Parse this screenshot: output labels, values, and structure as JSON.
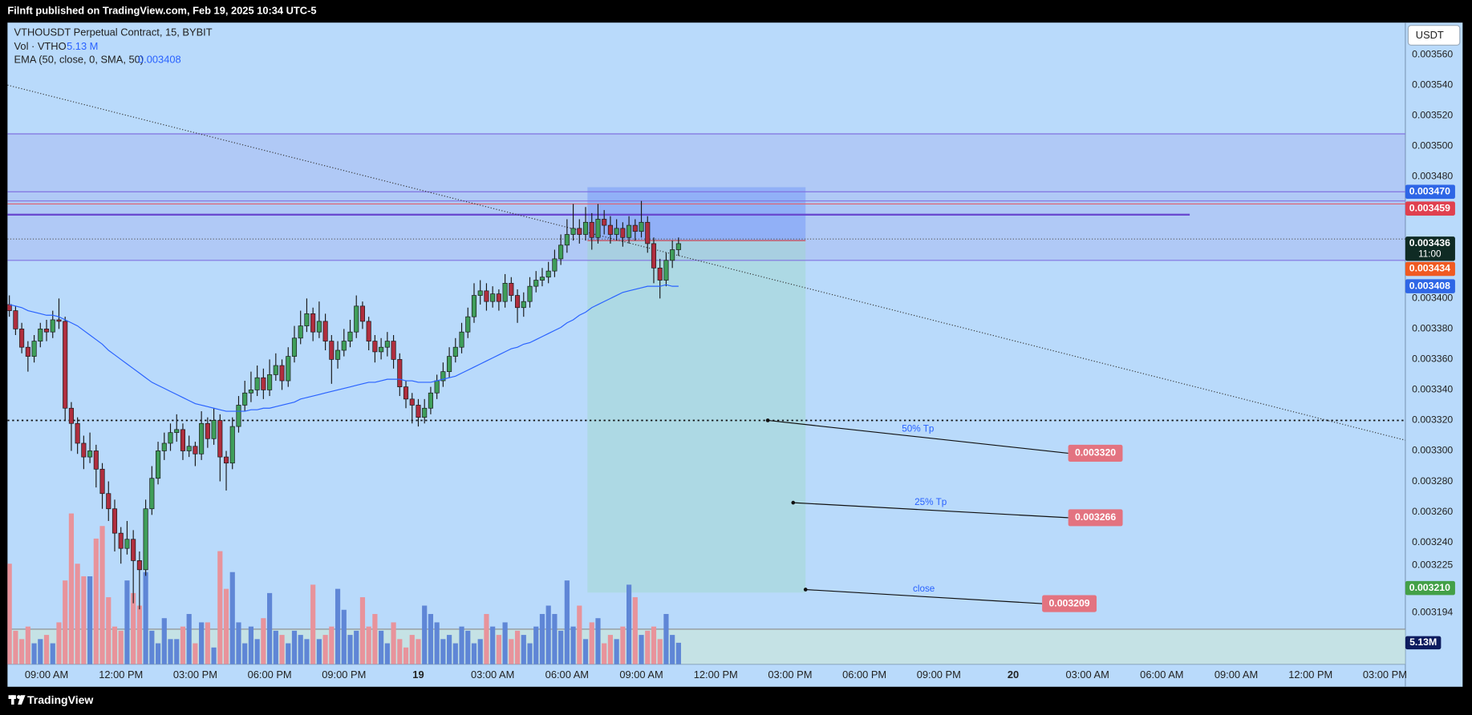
{
  "header": "Filnft published on TradingView.com, Feb 19, 2025 10:34 UTC-5",
  "footer_brand": "TradingView",
  "chart_data": {
    "type": "candlestick",
    "title": "VTHOUSDT Perpetual Contract, 15, BYBIT",
    "currency": "USDT",
    "volume_legend": {
      "name": "Vol · VTHO",
      "value_label": "5.13 M"
    },
    "up_color": "#3f9e5a",
    "down_color": "#b02e3e",
    "volume_up_color": "#5f86d6",
    "volume_down_color": "#e8939b",
    "xlim": [
      -0.3,
      225.3
    ],
    "ylim": [
      0.00316,
      0.003581
    ],
    "xticks": [
      {
        "value": 6,
        "label": "09:00 AM"
      },
      {
        "value": 18,
        "label": "12:00 PM"
      },
      {
        "value": 30,
        "label": "03:00 PM"
      },
      {
        "value": 42,
        "label": "06:00 PM"
      },
      {
        "value": 54,
        "label": "09:00 PM"
      },
      {
        "value": 66,
        "label": "19"
      },
      {
        "value": 78,
        "label": "03:00 AM"
      },
      {
        "value": 90,
        "label": "06:00 AM"
      },
      {
        "value": 102,
        "label": "09:00 AM"
      },
      {
        "value": 114,
        "label": "12:00 PM"
      },
      {
        "value": 126,
        "label": "03:00 PM"
      },
      {
        "value": 138,
        "label": "06:00 PM"
      },
      {
        "value": 150,
        "label": "09:00 PM"
      },
      {
        "value": 162,
        "label": "20"
      },
      {
        "value": 174,
        "label": "03:00 AM"
      },
      {
        "value": 186,
        "label": "06:00 AM"
      },
      {
        "value": 198,
        "label": "09:00 AM"
      },
      {
        "value": 210,
        "label": "12:00 PM"
      },
      {
        "value": 222,
        "label": "03:00 PM"
      }
    ],
    "yticks": [
      {
        "value": 0.00356,
        "label": "0.003560"
      },
      {
        "value": 0.00354,
        "label": "0.003540"
      },
      {
        "value": 0.00352,
        "label": "0.003520"
      },
      {
        "value": 0.0035,
        "label": "0.003500"
      },
      {
        "value": 0.00348,
        "label": "0.003480"
      },
      {
        "value": 0.0034,
        "label": "0.003400"
      },
      {
        "value": 0.00338,
        "label": "0.003380"
      },
      {
        "value": 0.00336,
        "label": "0.003360"
      },
      {
        "value": 0.00334,
        "label": "0.003340"
      },
      {
        "value": 0.00332,
        "label": "0.003320"
      },
      {
        "value": 0.0033,
        "label": "0.003300"
      },
      {
        "value": 0.00328,
        "label": "0.003280"
      },
      {
        "value": 0.00326,
        "label": "0.003260"
      },
      {
        "value": 0.00324,
        "label": "0.003240"
      },
      {
        "value": 0.003225,
        "label": "0.003225"
      },
      {
        "value": 0.003194,
        "label": "0.003194"
      }
    ],
    "ohlc": [
      [
        0.003396,
        0.003402,
        0.003388,
        0.003392
      ],
      [
        0.003392,
        0.003395,
        0.003376,
        0.00338
      ],
      [
        0.00338,
        0.003384,
        0.003364,
        0.003368
      ],
      [
        0.003368,
        0.003372,
        0.003352,
        0.003362
      ],
      [
        0.003362,
        0.003376,
        0.003358,
        0.003372
      ],
      [
        0.003372,
        0.003384,
        0.003368,
        0.00338
      ],
      [
        0.00338,
        0.003386,
        0.003372,
        0.003378
      ],
      [
        0.003378,
        0.003392,
        0.003374,
        0.003386
      ],
      [
        0.003386,
        0.0034,
        0.00338,
        0.003385
      ],
      [
        0.003385,
        0.003388,
        0.00332,
        0.003328
      ],
      [
        0.003328,
        0.003332,
        0.0033,
        0.003318
      ],
      [
        0.003318,
        0.003322,
        0.003298,
        0.003305
      ],
      [
        0.003305,
        0.00331,
        0.003288,
        0.003296
      ],
      [
        0.003296,
        0.003312,
        0.003292,
        0.0033
      ],
      [
        0.0033,
        0.003304,
        0.003276,
        0.003288
      ],
      [
        0.003288,
        0.003292,
        0.003262,
        0.003272
      ],
      [
        0.003272,
        0.00328,
        0.003254,
        0.003262
      ],
      [
        0.003262,
        0.003268,
        0.003234,
        0.003246
      ],
      [
        0.003246,
        0.00325,
        0.003226,
        0.003236
      ],
      [
        0.003236,
        0.003254,
        0.003232,
        0.003242
      ],
      [
        0.003242,
        0.003248,
        0.0032,
        0.003228
      ],
      [
        0.003228,
        0.003234,
        0.003196,
        0.003222
      ],
      [
        0.003222,
        0.003268,
        0.003218,
        0.003262
      ],
      [
        0.003262,
        0.00329,
        0.003258,
        0.003282
      ],
      [
        0.003282,
        0.003306,
        0.003278,
        0.0033
      ],
      [
        0.0033,
        0.003312,
        0.003294,
        0.003305
      ],
      [
        0.003305,
        0.003318,
        0.0033,
        0.003312
      ],
      [
        0.003312,
        0.003324,
        0.003306,
        0.003314
      ],
      [
        0.003314,
        0.003318,
        0.003294,
        0.0033
      ],
      [
        0.0033,
        0.00331,
        0.003296,
        0.003303
      ],
      [
        0.003303,
        0.003306,
        0.00329,
        0.003298
      ],
      [
        0.003298,
        0.003326,
        0.003294,
        0.003318
      ],
      [
        0.003318,
        0.003322,
        0.003302,
        0.003308
      ],
      [
        0.003308,
        0.003328,
        0.003304,
        0.00332
      ],
      [
        0.00332,
        0.003324,
        0.00328,
        0.003296
      ],
      [
        0.003296,
        0.0033,
        0.003274,
        0.003292
      ],
      [
        0.003292,
        0.003322,
        0.003288,
        0.003316
      ],
      [
        0.003316,
        0.003336,
        0.003312,
        0.00333
      ],
      [
        0.00333,
        0.003346,
        0.003326,
        0.003338
      ],
      [
        0.003338,
        0.003352,
        0.003332,
        0.00334
      ],
      [
        0.00334,
        0.003356,
        0.003336,
        0.003348
      ],
      [
        0.003348,
        0.003354,
        0.003334,
        0.00334
      ],
      [
        0.00334,
        0.00336,
        0.003336,
        0.00335
      ],
      [
        0.00335,
        0.003364,
        0.003346,
        0.003356
      ],
      [
        0.003356,
        0.00336,
        0.00334,
        0.003346
      ],
      [
        0.003346,
        0.003368,
        0.003342,
        0.003362
      ],
      [
        0.003362,
        0.003382,
        0.003358,
        0.003374
      ],
      [
        0.003374,
        0.003392,
        0.00337,
        0.003382
      ],
      [
        0.003382,
        0.0034,
        0.003378,
        0.00339
      ],
      [
        0.00339,
        0.003394,
        0.003372,
        0.003378
      ],
      [
        0.003378,
        0.003398,
        0.003374,
        0.003385
      ],
      [
        0.003385,
        0.00339,
        0.003366,
        0.003372
      ],
      [
        0.003372,
        0.003376,
        0.003344,
        0.00336
      ],
      [
        0.00336,
        0.003372,
        0.003354,
        0.003366
      ],
      [
        0.003366,
        0.00338,
        0.003362,
        0.003372
      ],
      [
        0.003372,
        0.003386,
        0.003368,
        0.003378
      ],
      [
        0.003378,
        0.003402,
        0.003374,
        0.003395
      ],
      [
        0.003395,
        0.003398,
        0.00338,
        0.003385
      ],
      [
        0.003385,
        0.003388,
        0.003366,
        0.003372
      ],
      [
        0.003372,
        0.003376,
        0.003358,
        0.003365
      ],
      [
        0.003365,
        0.003374,
        0.00336,
        0.003368
      ],
      [
        0.003368,
        0.003378,
        0.003362,
        0.003372
      ],
      [
        0.003372,
        0.003376,
        0.003354,
        0.00336
      ],
      [
        0.00336,
        0.003364,
        0.003336,
        0.003342
      ],
      [
        0.003342,
        0.003346,
        0.003328,
        0.003334
      ],
      [
        0.003334,
        0.003338,
        0.003318,
        0.00333
      ],
      [
        0.00333,
        0.003334,
        0.003316,
        0.003322
      ],
      [
        0.003322,
        0.003334,
        0.003318,
        0.003328
      ],
      [
        0.003328,
        0.003342,
        0.003324,
        0.003338
      ],
      [
        0.003338,
        0.00335,
        0.003334,
        0.003346
      ],
      [
        0.003346,
        0.003358,
        0.003342,
        0.003352
      ],
      [
        0.003352,
        0.003368,
        0.003348,
        0.003362
      ],
      [
        0.003362,
        0.003374,
        0.003358,
        0.003368
      ],
      [
        0.003368,
        0.003384,
        0.003364,
        0.003378
      ],
      [
        0.003378,
        0.003394,
        0.003374,
        0.003388
      ],
      [
        0.003388,
        0.00341,
        0.003384,
        0.003402
      ],
      [
        0.003402,
        0.003412,
        0.003396,
        0.003405
      ],
      [
        0.003405,
        0.00341,
        0.003392,
        0.003398
      ],
      [
        0.003398,
        0.003408,
        0.003394,
        0.003403
      ],
      [
        0.003403,
        0.003406,
        0.003392,
        0.003398
      ],
      [
        0.003398,
        0.003416,
        0.003394,
        0.00341
      ],
      [
        0.00341,
        0.003414,
        0.003398,
        0.003402
      ],
      [
        0.003402,
        0.003406,
        0.003384,
        0.003394
      ],
      [
        0.003394,
        0.003404,
        0.003388,
        0.003398
      ],
      [
        0.003398,
        0.003414,
        0.003394,
        0.003408
      ],
      [
        0.003408,
        0.003418,
        0.003404,
        0.003412
      ],
      [
        0.003412,
        0.00342,
        0.003408,
        0.003414
      ],
      [
        0.003414,
        0.003424,
        0.00341,
        0.003418
      ],
      [
        0.003418,
        0.003432,
        0.003414,
        0.003426
      ],
      [
        0.003426,
        0.003442,
        0.003422,
        0.003435
      ],
      [
        0.003435,
        0.003452,
        0.00343,
        0.003442
      ],
      [
        0.003442,
        0.003462,
        0.003438,
        0.003446
      ],
      [
        0.003446,
        0.003452,
        0.003436,
        0.003442
      ],
      [
        0.003442,
        0.00346,
        0.003438,
        0.00345
      ],
      [
        0.00345,
        0.003456,
        0.003432,
        0.00344
      ],
      [
        0.00344,
        0.003462,
        0.003436,
        0.003452
      ],
      [
        0.003452,
        0.003458,
        0.003442,
        0.003448
      ],
      [
        0.003448,
        0.003454,
        0.003436,
        0.003442
      ],
      [
        0.003442,
        0.003452,
        0.003438,
        0.003446
      ],
      [
        0.003446,
        0.00345,
        0.003434,
        0.00344
      ],
      [
        0.00344,
        0.003454,
        0.003436,
        0.003448
      ],
      [
        0.003448,
        0.003452,
        0.003438,
        0.003444
      ],
      [
        0.003444,
        0.003464,
        0.00344,
        0.00345
      ],
      [
        0.00345,
        0.003454,
        0.00343,
        0.003436
      ],
      [
        0.003436,
        0.00344,
        0.00341,
        0.00342
      ],
      [
        0.00342,
        0.003426,
        0.0034,
        0.003412
      ],
      [
        0.003412,
        0.00343,
        0.003408,
        0.003425
      ],
      [
        0.003425,
        0.003438,
        0.00342,
        0.003432
      ],
      [
        0.003432,
        0.00344,
        0.003428,
        0.003436
      ]
    ],
    "volume": [
      24,
      8,
      6,
      9,
      5,
      6,
      7,
      5,
      10,
      20,
      36,
      24,
      21,
      21,
      30,
      33,
      16,
      9,
      8,
      20,
      17,
      14,
      22,
      8,
      5,
      11,
      6,
      6,
      9,
      12,
      5,
      10,
      10,
      4,
      27,
      18,
      22,
      10,
      5,
      9,
      6,
      11,
      17,
      8,
      7,
      5,
      8,
      7,
      6,
      19,
      6,
      7,
      9,
      18,
      13,
      7,
      8,
      16,
      9,
      12,
      8,
      5,
      10,
      6,
      4,
      7,
      6,
      14,
      12,
      10,
      6,
      7,
      5,
      9,
      8,
      5,
      6,
      12,
      9,
      7,
      10,
      6,
      8,
      7,
      5,
      9,
      12,
      14,
      12,
      8,
      20,
      9,
      14,
      6,
      10,
      11,
      5,
      7,
      6,
      9,
      19,
      16,
      7,
      8,
      9,
      6,
      12,
      7,
      5.13
    ],
    "ema": {
      "name": "EMA (50, close, 0, SMA, 50)",
      "value_label": "0.003408",
      "color": "#2962ff",
      "values": [
        0.003396,
        0.003395,
        0.003394,
        0.003392,
        0.003391,
        0.00339,
        0.003389,
        0.003389,
        0.003388,
        0.003386,
        0.003384,
        0.003382,
        0.003379,
        0.003376,
        0.003373,
        0.00337,
        0.003366,
        0.003363,
        0.00336,
        0.003357,
        0.003354,
        0.003351,
        0.003348,
        0.003345,
        0.003343,
        0.003341,
        0.003339,
        0.003337,
        0.003335,
        0.003333,
        0.003331,
        0.00333,
        0.003329,
        0.003328,
        0.003327,
        0.003326,
        0.003326,
        0.003326,
        0.003326,
        0.003327,
        0.003327,
        0.003328,
        0.003328,
        0.003329,
        0.00333,
        0.003331,
        0.003332,
        0.003334,
        0.003335,
        0.003336,
        0.003337,
        0.003338,
        0.003339,
        0.00334,
        0.003341,
        0.003342,
        0.003343,
        0.003344,
        0.003345,
        0.003345,
        0.003346,
        0.003347,
        0.003347,
        0.003347,
        0.003346,
        0.003346,
        0.003345,
        0.003345,
        0.003345,
        0.003346,
        0.003347,
        0.003348,
        0.003349,
        0.003351,
        0.003353,
        0.003355,
        0.003357,
        0.003359,
        0.003361,
        0.003363,
        0.003365,
        0.003367,
        0.003368,
        0.00337,
        0.003371,
        0.003373,
        0.003375,
        0.003377,
        0.003379,
        0.003381,
        0.003384,
        0.003386,
        0.003389,
        0.003391,
        0.003394,
        0.003396,
        0.003398,
        0.0034,
        0.003402,
        0.003404,
        0.003405,
        0.003406,
        0.003407,
        0.003408,
        0.003408,
        0.003408,
        0.003409,
        0.003408,
        0.003408
      ]
    },
    "zones": [
      {
        "from": 0.003508,
        "to": 0.003425,
        "color": "rgba(130,115,225,0.16)"
      },
      {
        "from": 0.003183,
        "to": 0.00316,
        "color": "rgba(205,232,215,0.6)"
      }
    ],
    "levels": [
      {
        "value": 0.003508,
        "color": "#8072e0",
        "width": 1
      },
      {
        "value": 0.00347,
        "color": "#8072e0",
        "width": 1
      },
      {
        "value": 0.003464,
        "color": "#8072e0",
        "width": 1
      },
      {
        "value": 0.003462,
        "color": "#e0606c",
        "width": 1
      },
      {
        "value": 0.003455,
        "color": "#6a4ad0",
        "width": 2,
        "end": 190.5
      },
      {
        "value": 0.003439,
        "color": "#555555",
        "width": 1,
        "dash": "dotted"
      },
      {
        "value": 0.003425,
        "color": "#8072e0",
        "width": 1
      },
      {
        "value": 0.00332,
        "color": "#111111",
        "width": 1.5,
        "dash": "dotted"
      },
      {
        "value": 0.003183,
        "color": "#8a8a8a",
        "width": 1
      }
    ],
    "trendline": {
      "x": [
        -0.3,
        225.3
      ],
      "y": [
        0.00354,
        0.003307
      ],
      "color": "#333333"
    },
    "position": {
      "start": 93.3,
      "end": 128.5,
      "stop": 0.003473,
      "entry": 0.003438,
      "target": 0.003207
    },
    "annotations": [
      {
        "text": "50% Tp",
        "label": "0.003320",
        "x": 122.4,
        "y": 0.00332,
        "color": "#e37380"
      },
      {
        "text": "25% Tp",
        "label": "0.003266",
        "x": 126.5,
        "y": 0.003266,
        "color": "#e37380"
      },
      {
        "text": "close",
        "label": "0.003209",
        "x": 128.5,
        "y": 0.003209,
        "color": "#e37380"
      }
    ],
    "price_labels": [
      {
        "value": 0.00347,
        "label": "0.003470",
        "color": "#2e66e6"
      },
      {
        "value": 0.003459,
        "label": "0.003459",
        "color": "#e0404f"
      },
      {
        "value": 0.003436,
        "label": "0.003436",
        "countdown": "11:00",
        "color": "#0f2b24"
      },
      {
        "value": 0.003434,
        "label": "0.003434",
        "color": "#f05a22"
      },
      {
        "value": 0.003408,
        "label": "0.003408",
        "color": "#2e66e6"
      },
      {
        "value": 0.00321,
        "label": "0.003210",
        "color": "#43a047"
      }
    ],
    "volume_label": {
      "value": 5.13,
      "label": "5.13M",
      "color": "#0d1b5e"
    }
  }
}
